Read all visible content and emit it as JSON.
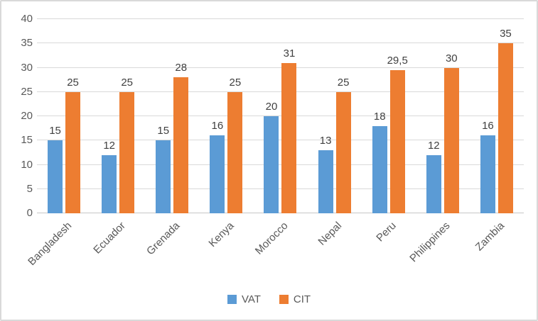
{
  "chart_data": {
    "type": "bar",
    "title": "",
    "xlabel": "",
    "ylabel": "",
    "categories": [
      "Bangladesh",
      "Ecuador",
      "Grenada",
      "Kenya",
      "Morocco",
      "Nepal",
      "Peru",
      "Philippines",
      "Zambia"
    ],
    "series": [
      {
        "name": "VAT",
        "color": "#5B9BD5",
        "values": [
          15,
          12,
          15,
          16,
          20,
          13,
          18,
          12,
          16
        ]
      },
      {
        "name": "CIT",
        "color": "#ED7D31",
        "values": [
          25,
          25,
          28,
          25,
          31,
          25,
          29.5,
          30,
          35
        ]
      }
    ],
    "ylim": [
      0,
      40
    ],
    "ytick_step": 5,
    "yticks": [
      0,
      5,
      10,
      15,
      20,
      25,
      30,
      35,
      40
    ],
    "grid": true,
    "data_labels": true,
    "decimal_separator": ",",
    "legend_position": "bottom",
    "x_label_rotation_deg": 45
  },
  "colors": {
    "grid": "#D9D9D9",
    "axis_text": "#595959",
    "label_text": "#404040",
    "frame_border": "#D9D9D9",
    "background": "#FFFFFF"
  }
}
